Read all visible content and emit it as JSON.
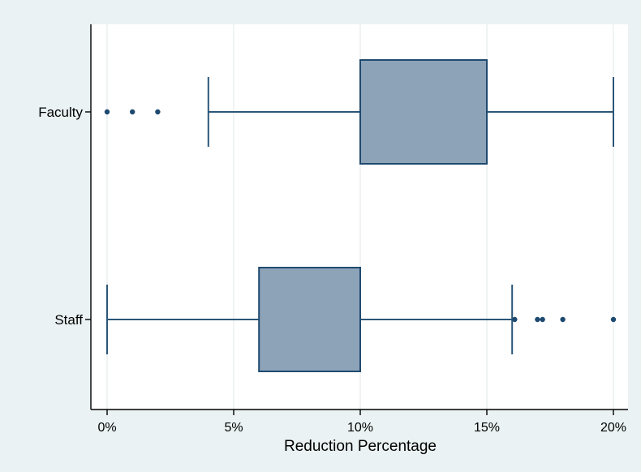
{
  "chart_data": {
    "type": "boxplot",
    "orientation": "horizontal",
    "title": "",
    "xlabel": "Reduction Percentage",
    "ylabel": "",
    "xlim": [
      -0.7,
      20.7
    ],
    "x_ticks": [
      0,
      5,
      10,
      15,
      20
    ],
    "x_tick_labels": [
      "0%",
      "5%",
      "10%",
      "15%",
      "20%"
    ],
    "grid": true,
    "categories": [
      "Faculty",
      "Staff"
    ],
    "boxes": [
      {
        "category": "Faculty",
        "whisker_low": 4,
        "q1": 10,
        "median": 10,
        "q3": 15,
        "whisker_high": 20,
        "outliers": [
          0,
          1,
          2
        ]
      },
      {
        "category": "Staff",
        "whisker_low": 0,
        "q1": 6,
        "median": 10,
        "q3": 10,
        "whisker_high": 16,
        "outliers": [
          16.1,
          17,
          17.2,
          18,
          20
        ]
      }
    ],
    "colors": {
      "box_fill": "#8da3b8",
      "box_stroke": "#1f4a70",
      "whisker": "#2b5678",
      "outlier": "#1f4a70",
      "grid": "#e9eeee",
      "outer_bg": "#eaf2f3",
      "plot_bg": "#ffffff",
      "axis": "#000000"
    }
  }
}
